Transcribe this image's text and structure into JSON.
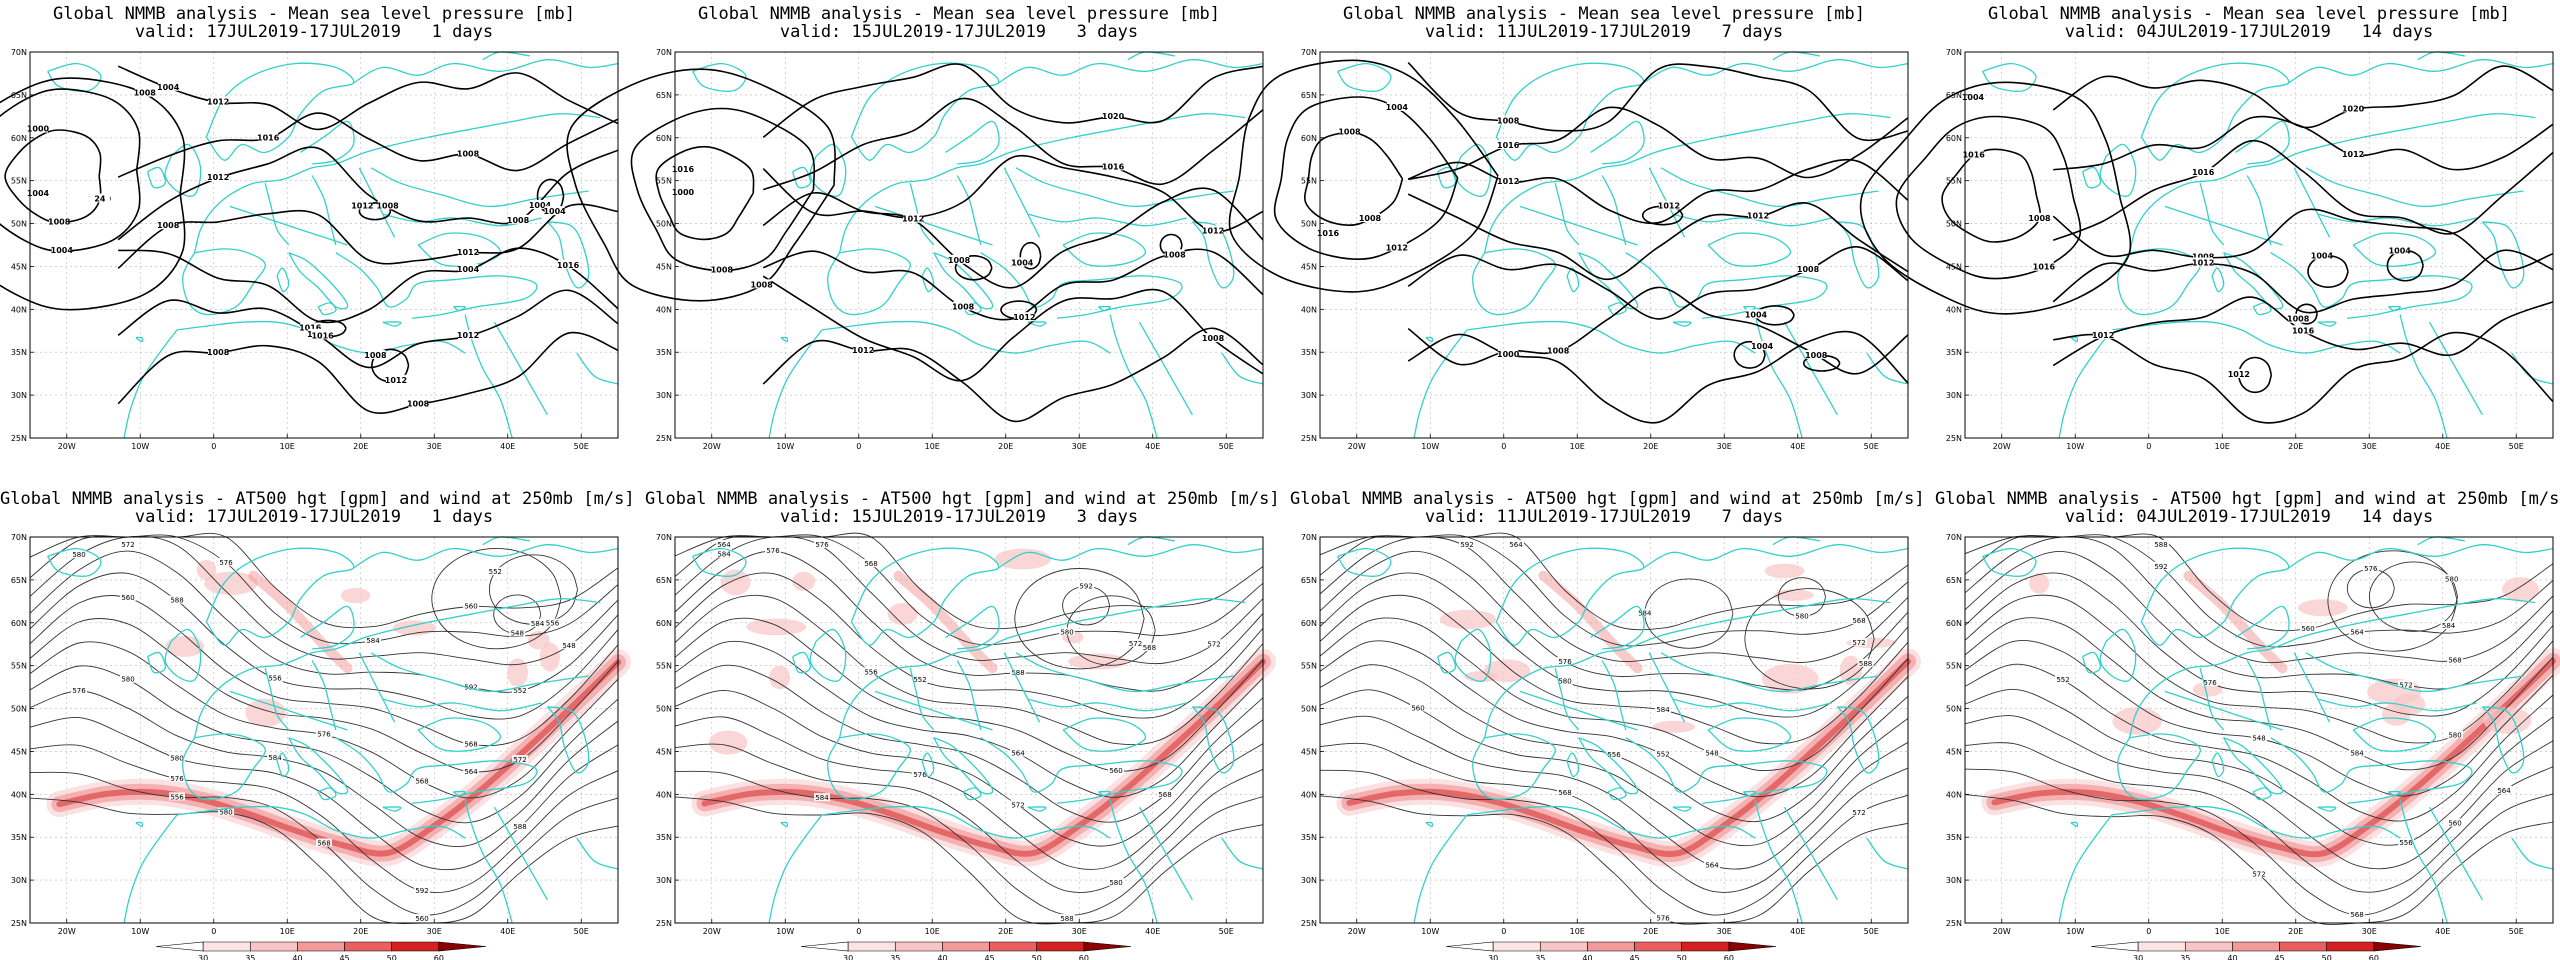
{
  "colors": {
    "coast": "#33d0cc",
    "contour": "#000000",
    "grid": "#b8b8b8",
    "wind_light": "#f8c8c8",
    "wind_mid": "#f08a8a",
    "wind_dark": "#d42020"
  },
  "axes": {
    "lat_labels": [
      "70N",
      "65N",
      "60N",
      "55N",
      "50N",
      "45N",
      "40N",
      "35N",
      "30N",
      "25N"
    ],
    "lon_labels": [
      "20W",
      "10W",
      "0",
      "10E",
      "20E",
      "30E",
      "40E",
      "50E"
    ]
  },
  "colorbar": {
    "labels": [
      "30",
      "35",
      "40",
      "45",
      "50",
      "60"
    ]
  },
  "panels": [
    {
      "id": "mslp-1d",
      "type": "mslp",
      "title1": "Global NMMB analysis - Mean sea level pressure [mb]",
      "title2": "valid: 17JUL2019-17JUL2019   1 days",
      "contour_labels": [
        "1000",
        "1004",
        "1008",
        "1012",
        "1016",
        "1008",
        "1012",
        "1016",
        "1012",
        "1008",
        "1016",
        "1012",
        "1008",
        "1004",
        "1008",
        "1000",
        "1004",
        "1004",
        "1008",
        "1012",
        "1008",
        "1004",
        "1008",
        "1008",
        "1016",
        "1008",
        "1012",
        "1004",
        "24"
      ]
    },
    {
      "id": "mslp-3d",
      "type": "mslp",
      "title1": "Global NMMB analysis - Mean sea level pressure [mb]",
      "title2": "valid: 15JUL2019-17JUL2019   3 days",
      "contour_labels": [
        "1016",
        "1012",
        "1008",
        "1020",
        "1016",
        "1012",
        "1012",
        "1008",
        "1008",
        "1012",
        "1008",
        "1012",
        "1008",
        "1004",
        "1000",
        "1008"
      ]
    },
    {
      "id": "mslp-7d",
      "type": "mslp",
      "title1": "Global NMMB analysis - Mean sea level pressure [mb]",
      "title2": "valid: 11JUL2019-17JUL2019   7 days",
      "contour_labels": [
        "1008",
        "1012",
        "1016",
        "1008",
        "1016",
        "1012",
        "1012",
        "1008",
        "1008",
        "1000",
        "1004",
        "1012",
        "1008",
        "1004",
        "1008",
        "1004"
      ]
    },
    {
      "id": "mslp-14d",
      "type": "mslp",
      "title1": "Global NMMB analysis - Mean sea level pressure [mb]",
      "title2": "valid: 04JUL2019-17JUL2019   14 days",
      "contour_labels": [
        "1016",
        "1016",
        "1004",
        "1020",
        "1012",
        "1016",
        "1008",
        "1012",
        "1016",
        "1012",
        "1004",
        "1008",
        "1004",
        "1012",
        "1008"
      ]
    },
    {
      "id": "z500-1d",
      "type": "z500",
      "title1": "Global NMMB analysis - AT500 hgt [gpm] and wind at 250mb [m/s]",
      "title2": "valid: 17JUL2019-17JUL2019   1 days",
      "contour_labels": [
        "560",
        "584",
        "548",
        "552",
        "556",
        "560",
        "564",
        "568",
        "572",
        "576",
        "580",
        "576",
        "568",
        "560",
        "548",
        "552",
        "556",
        "572",
        "576",
        "580",
        "592",
        "588",
        "568",
        "572",
        "576",
        "580",
        "584",
        "588",
        "592",
        "556",
        "580",
        "584"
      ]
    },
    {
      "id": "z500-3d",
      "type": "z500",
      "title1": "Global NMMB analysis - AT500 hgt [gpm] and wind at 250mb [m/s]",
      "title2": "valid: 15JUL2019-17JUL2019   3 days",
      "contour_labels": [
        "564",
        "568",
        "572",
        "576",
        "552",
        "556",
        "560",
        "564",
        "568",
        "572",
        "576",
        "580",
        "584",
        "588",
        "592",
        "568",
        "572",
        "576",
        "580",
        "584",
        "588"
      ]
    },
    {
      "id": "z500-7d",
      "type": "z500",
      "title1": "Global NMMB analysis - AT500 hgt [gpm] and wind at 250mb [m/s]",
      "title2": "valid: 11JUL2019-17JUL2019   7 days",
      "contour_labels": [
        "564",
        "568",
        "572",
        "576",
        "580",
        "584",
        "548",
        "552",
        "556",
        "560",
        "564",
        "568",
        "572",
        "576",
        "580",
        "584",
        "588",
        "592"
      ]
    },
    {
      "id": "z500-14d",
      "type": "z500",
      "title1": "Global NMMB analysis - AT500 hgt [gpm] and wind at 250mb [m/s]",
      "title2": "valid: 04JUL2019-17JUL2019   14 days",
      "contour_labels": [
        "560",
        "564",
        "568",
        "572",
        "576",
        "580",
        "584",
        "548",
        "552",
        "556",
        "560",
        "564",
        "568",
        "572",
        "576",
        "580",
        "584",
        "588",
        "592"
      ]
    }
  ]
}
